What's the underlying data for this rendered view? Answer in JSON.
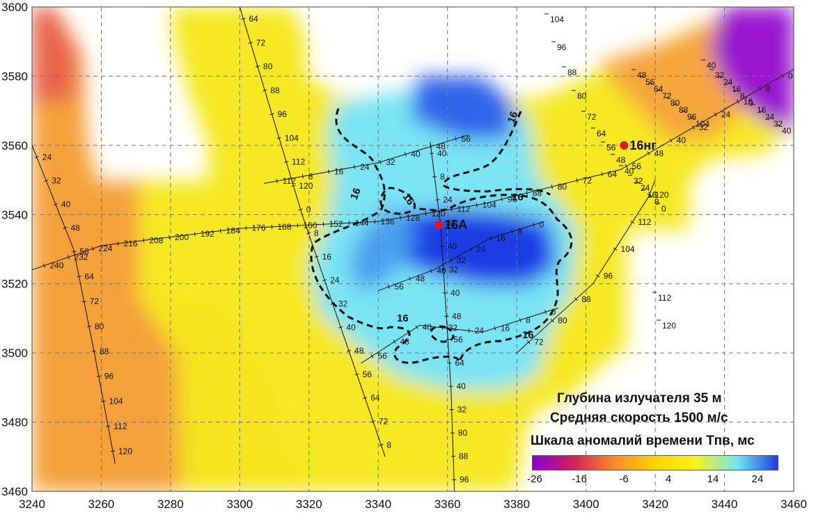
{
  "map": {
    "x_ticks": [
      "3240",
      "3260",
      "3280",
      "3300",
      "3320",
      "3340",
      "3360",
      "3380",
      "3400",
      "3420",
      "3440",
      "3460"
    ],
    "y_ticks": [
      "3600",
      "3580",
      "3560",
      "3540",
      "3520",
      "3500",
      "3480",
      "3460"
    ],
    "x_range": [
      3240,
      3460
    ],
    "y_range": [
      3460,
      3600
    ],
    "wells": [
      {
        "name": "16A",
        "x": 3357.5,
        "y": 3537
      },
      {
        "name": "16нг",
        "x": 3411,
        "y": 3560
      }
    ],
    "isoline_label": "16",
    "profiles": [
      {
        "name": "profile-west-diagonal",
        "pts": [
          [
            3240,
            3560
          ],
          [
            3252,
            3530
          ],
          [
            3258,
            3500
          ],
          [
            3264,
            3468
          ]
        ],
        "labels": [
          "24",
          "32",
          "40",
          "48",
          "56",
          "64",
          "72",
          "80",
          "88",
          "96",
          "104",
          "112",
          "120"
        ]
      },
      {
        "name": "profile-main-ew",
        "pts": [
          [
            3240,
            3524
          ],
          [
            3260,
            3531
          ],
          [
            3300,
            3536
          ],
          [
            3340,
            3538
          ],
          [
            3370,
            3543
          ],
          [
            3410,
            3553
          ],
          [
            3460,
            3582
          ]
        ],
        "labels": [
          "240",
          "232",
          "224",
          "216",
          "208",
          "200",
          "192",
          "184",
          "176",
          "168",
          "160",
          "152",
          "144",
          "136",
          "128",
          "120",
          "112",
          "104",
          "96",
          "88",
          "80",
          "72",
          "64",
          "56",
          "48",
          "40",
          "32",
          "24",
          "16",
          "8",
          "0"
        ]
      },
      {
        "name": "profile-north-ns-1",
        "pts": [
          [
            3300,
            3600
          ],
          [
            3318,
            3540
          ],
          [
            3342,
            3470
          ]
        ],
        "labels": [
          "64",
          "72",
          "80",
          "88",
          "96",
          "104",
          "112",
          "120",
          "0",
          "8",
          "16",
          "24",
          "32",
          "40",
          "48",
          "56",
          "64",
          "72",
          "8"
        ]
      },
      {
        "name": "profile-center-ns",
        "pts": [
          [
            3355,
            3561
          ],
          [
            3358,
            3537
          ],
          [
            3361,
            3490
          ],
          [
            3362,
            3460
          ]
        ],
        "labels": [
          "40",
          "8",
          "24",
          "32",
          "40",
          "32",
          "40",
          "48",
          "56",
          "64",
          "40",
          "32",
          "80",
          "88",
          "96"
        ]
      },
      {
        "name": "profile-northern-ne",
        "pts": [
          [
            3307,
            3549
          ],
          [
            3340,
            3555
          ],
          [
            3366,
            3563
          ]
        ],
        "labels": [
          "112",
          "8",
          "16",
          "24",
          "32",
          "40",
          "48",
          "56"
        ]
      },
      {
        "name": "profile-east-sw-ne",
        "pts": [
          [
            3380,
            3500
          ],
          [
            3402,
            3520
          ],
          [
            3418,
            3545
          ],
          [
            3420,
            3550
          ]
        ],
        "labels": [
          "72",
          "80",
          "88",
          "96",
          "104",
          "112",
          "120"
        ]
      },
      {
        "name": "profile-center-sw-ne",
        "pts": [
          [
            3340,
            3518
          ],
          [
            3356,
            3524
          ],
          [
            3372,
            3533
          ],
          [
            3388,
            3538
          ]
        ],
        "labels": [
          "56",
          "48",
          "40",
          "32",
          "24",
          "16",
          "8",
          "0"
        ]
      },
      {
        "name": "profile-south-sw-ne",
        "pts": [
          [
            3335,
            3497
          ],
          [
            3352,
            3508
          ],
          [
            3370,
            3506
          ],
          [
            3392,
            3513
          ]
        ],
        "labels": [
          "56",
          "48",
          "40",
          "32",
          "24",
          "16",
          "8",
          "0"
        ]
      }
    ],
    "scatter_labels": [
      "104",
      "96",
      "88",
      "80",
      "72",
      "64",
      "56",
      "48",
      "40",
      "32",
      "24",
      "16",
      "8",
      "0",
      "40",
      "32",
      "24",
      "16",
      "8",
      "0",
      "16",
      "24",
      "32",
      "40",
      "48",
      "56",
      "64",
      "72",
      "80",
      "88",
      "96",
      "104",
      "112",
      "120"
    ]
  },
  "info": {
    "depth": "Глубина излучателя 35 м",
    "speed": "Средняя скорость 1500 м/с"
  },
  "legend": {
    "title": "Шкала аномалий времени Тпв, мс",
    "ticks": [
      "-26",
      "-16",
      "-6",
      "4",
      "14",
      "24"
    ],
    "colors": [
      "#8a00d4",
      "#d2205a",
      "#ff8a2a",
      "#ffd500",
      "#f4f418",
      "#76e6f2",
      "#1e3ce6"
    ]
  }
}
